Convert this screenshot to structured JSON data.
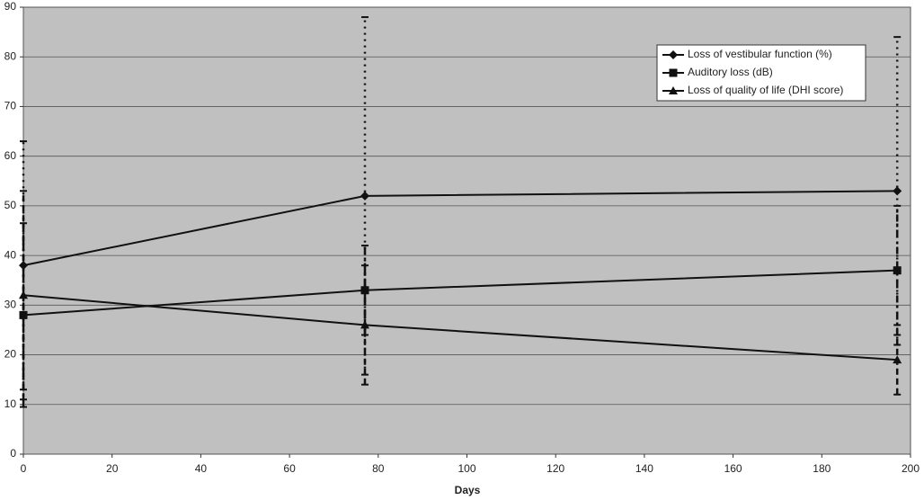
{
  "chart_data": {
    "type": "line",
    "x_label": "Days",
    "x": [
      0,
      77,
      197
    ],
    "series": [
      {
        "name": "Loss of vestibular function (%)",
        "color": "#111111",
        "marker": "diamond",
        "values": [
          38,
          52,
          53
        ],
        "errors": [
          25,
          36,
          31
        ],
        "error_dash": "2,5"
      },
      {
        "name": "Auditory loss (dB)",
        "color": "#111111",
        "marker": "square",
        "values": [
          28,
          33,
          37
        ],
        "errors": [
          18.5,
          9,
          13
        ],
        "error_dash": "8,4,2,4"
      },
      {
        "name": "Loss of quality of life (DHI score)",
        "color": "#111111",
        "marker": "triangle",
        "values": [
          32,
          26,
          19
        ],
        "errors": [
          21,
          12,
          7
        ],
        "error_dash": "7,4"
      }
    ],
    "xlim": [
      0,
      200
    ],
    "xticks": [
      0,
      20,
      40,
      60,
      80,
      100,
      120,
      140,
      160,
      180,
      200
    ],
    "ylim": [
      0,
      90
    ],
    "yticks": [
      0,
      10,
      20,
      30,
      40,
      50,
      60,
      70,
      80,
      90
    ],
    "grid": true,
    "legend": "top-right",
    "background": "#c0c0c0"
  }
}
